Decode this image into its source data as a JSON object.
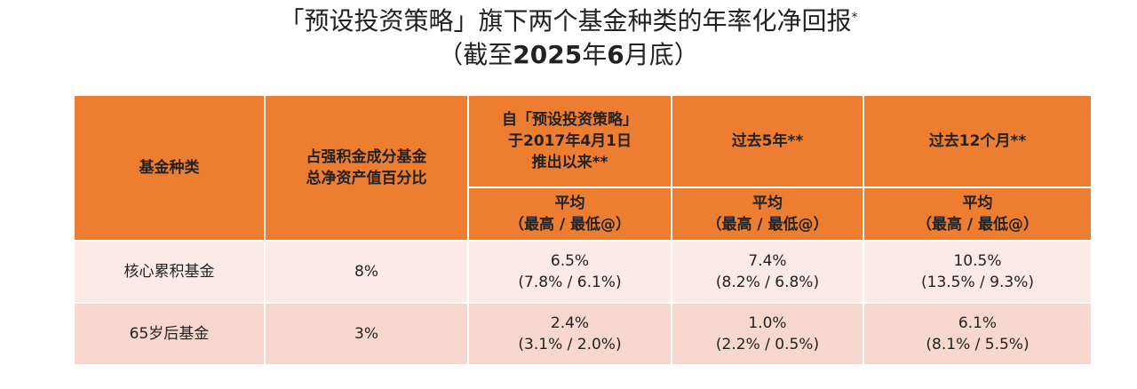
{
  "title": {
    "line1": "「预设投资策略」旗下两个基金种类的年率化净回报",
    "line1_mark": "*",
    "line2_prefix": "（截至",
    "line2_bold": "2025",
    "line2_mid": "年",
    "line2_bold2": "6",
    "line2_suffix": "月底）"
  },
  "headers": {
    "fund_type": "基金种类",
    "nav_percent_line1": "占强积金成分基金",
    "nav_percent_line2": "总净资产值百分比",
    "since_launch_line1": "自「预设投资策略」",
    "since_launch_line2": "于2017年4月1日",
    "since_launch_line3": "推出以来**",
    "past_5y": "过去5年**",
    "past_12m": "过去12个月**",
    "sub_line1": "平均",
    "sub_line2": "（最高 / 最低@）"
  },
  "rows": [
    {
      "fund": "核心累积基金",
      "nav_percent": "8%",
      "since_launch_avg": "6.5%",
      "since_launch_range": "(7.8% / 6.1%)",
      "past_5y_avg": "7.4%",
      "past_5y_range": "(8.2% / 6.8%)",
      "past_12m_avg": "10.5%",
      "past_12m_range": "(13.5% / 9.3%)"
    },
    {
      "fund": "65岁后基金",
      "nav_percent": "3%",
      "since_launch_avg": "2.4%",
      "since_launch_range": "(3.1% / 2.0%)",
      "past_5y_avg": "1.0%",
      "past_5y_range": "(2.2% / 0.5%)",
      "past_12m_avg": "6.1%",
      "past_12m_range": "(8.1% / 5.5%)"
    }
  ],
  "colors": {
    "header_bg": "#ed7d31",
    "row1_bg": "#fbeae5",
    "row2_bg": "#f8d7ce"
  }
}
